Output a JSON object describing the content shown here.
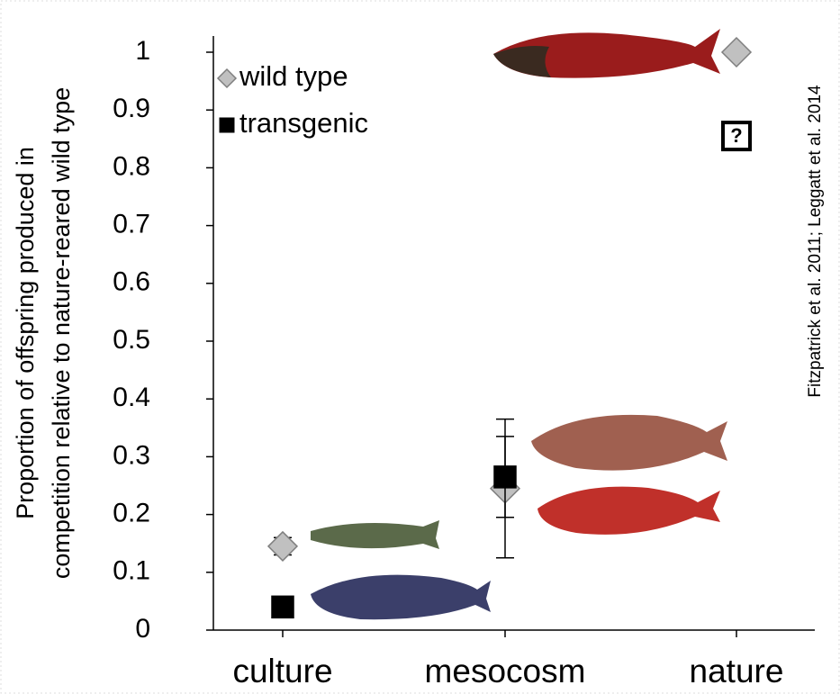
{
  "chart_data": {
    "type": "scatter",
    "y_label": [
      "Proportion of offspring produced in",
      "competition relative to nature-reared wild type"
    ],
    "annotation": "Fitzpatrick et al. 2011; Leggatt et al. 2014",
    "categories": [
      "culture",
      "mesocosm",
      "nature"
    ],
    "series": [
      {
        "name": "wild type",
        "color": "#c0c0c0",
        "marker": "diamond",
        "values": [
          0.145,
          0.245,
          1.0
        ],
        "errors": [
          0.015,
          0.12,
          null
        ]
      },
      {
        "name": "transgenic",
        "color": "#000000",
        "marker": "square",
        "values": [
          0.04,
          0.265,
          0.855
        ],
        "errors": [
          null,
          0.07,
          null
        ],
        "value_labels": [
          null,
          null,
          "?"
        ]
      }
    ],
    "ylim": [
      0,
      1
    ],
    "yticks": [
      0,
      0.1,
      0.2,
      0.3,
      0.4,
      0.5,
      0.6,
      0.7,
      0.8,
      0.9,
      1
    ],
    "legend": "top-left",
    "grid": false
  }
}
